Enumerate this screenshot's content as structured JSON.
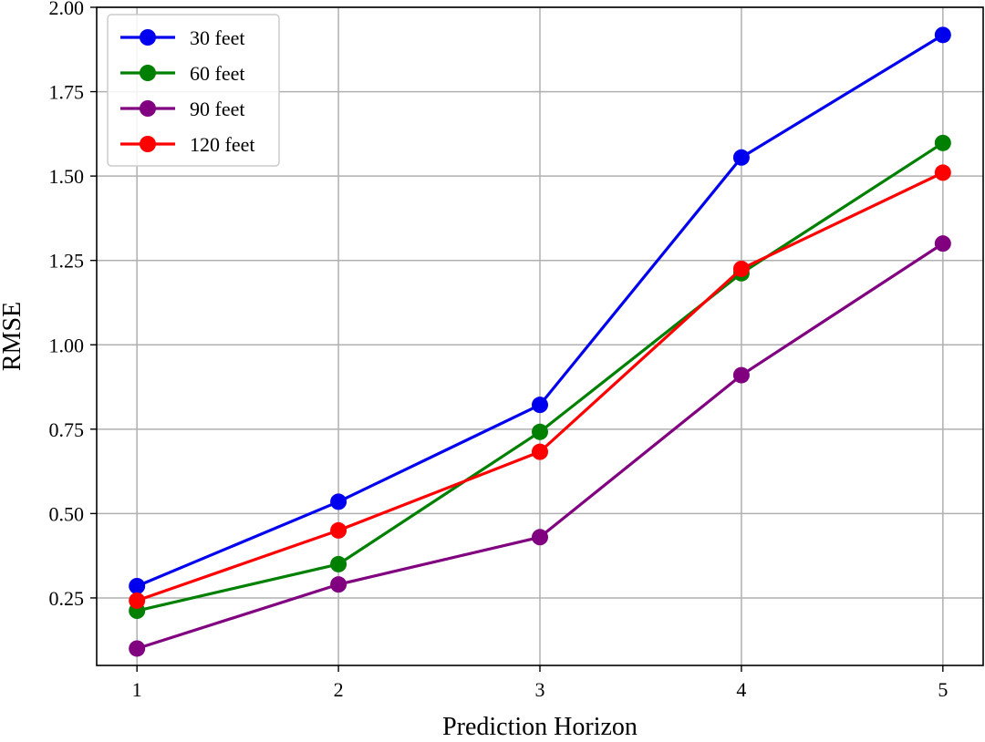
{
  "chart_data": {
    "type": "line",
    "xlabel": "Prediction Horizon",
    "ylabel": "RMSE",
    "x": [
      1,
      2,
      3,
      4,
      5
    ],
    "xticks": [
      "1",
      "2",
      "3",
      "4",
      "5"
    ],
    "xlim": [
      0.8,
      5.2
    ],
    "ylim": [
      0.05,
      2.0
    ],
    "yticks": [
      "0.25",
      "0.50",
      "0.75",
      "1.00",
      "1.25",
      "1.50",
      "1.75",
      "2.00"
    ],
    "grid": true,
    "legend_position": "top-left",
    "series": [
      {
        "name": "30 feet",
        "color": "#0000ee",
        "values": [
          0.285,
          0.535,
          0.822,
          1.555,
          1.918
        ]
      },
      {
        "name": "60 feet",
        "color": "#008000",
        "values": [
          0.212,
          0.35,
          0.742,
          1.212,
          1.598
        ]
      },
      {
        "name": "90 feet",
        "color": "#800080",
        "values": [
          0.1,
          0.29,
          0.43,
          0.91,
          1.3
        ]
      },
      {
        "name": "120 feet",
        "color": "#ff0000",
        "values": [
          0.242,
          0.45,
          0.683,
          1.225,
          1.51
        ]
      }
    ]
  }
}
